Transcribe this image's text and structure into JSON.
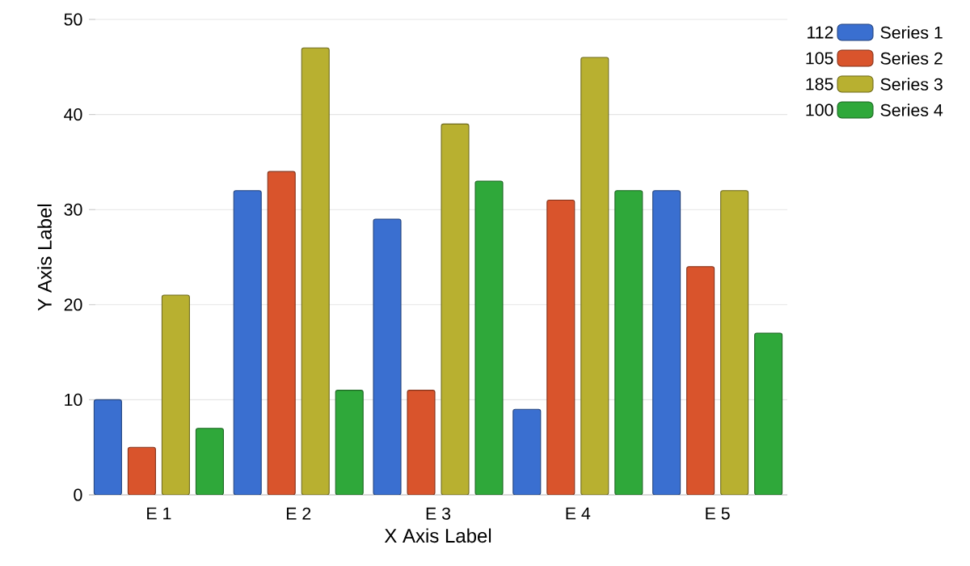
{
  "chart_data": {
    "type": "bar",
    "xlabel": "X Axis Label",
    "ylabel": "Y Axis Label",
    "categories": [
      "E 1",
      "E 2",
      "E 3",
      "E 4",
      "E 5"
    ],
    "series": [
      {
        "name": "Series 1",
        "color": "#3a6fd0",
        "values": [
          10,
          32,
          29,
          9,
          32
        ]
      },
      {
        "name": "Series 2",
        "color": "#d9542c",
        "values": [
          5,
          34,
          11,
          31,
          24
        ]
      },
      {
        "name": "Series 3",
        "color": "#b8b030",
        "values": [
          21,
          47,
          39,
          46,
          32
        ]
      },
      {
        "name": "Series 4",
        "color": "#2fa83a",
        "values": [
          7,
          11,
          33,
          32,
          17
        ]
      }
    ],
    "annotations": [
      "112",
      "105",
      "185",
      "100"
    ],
    "ylim": [
      0,
      50
    ],
    "yticks": [
      0,
      10,
      20,
      30,
      40,
      50
    ],
    "grid": "y",
    "legend": "top right"
  }
}
